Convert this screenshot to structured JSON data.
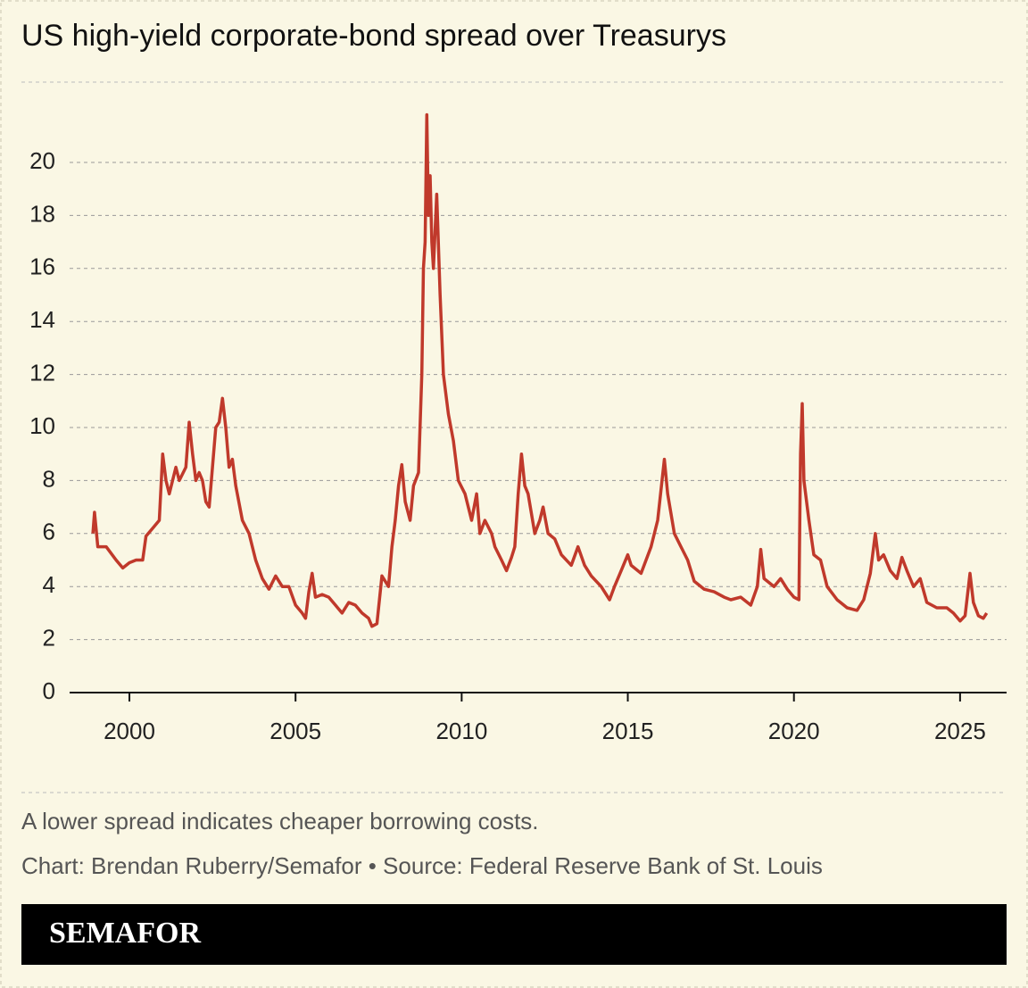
{
  "chart_data": {
    "type": "line",
    "title": "US high-yield corporate-bond spread over Treasurys",
    "note": "A lower spread indicates cheaper borrowing costs.",
    "source": "Chart: Brendan Ruberry/Semafor • Source: Federal Reserve Bank of St. Louis",
    "brand": "SEMAFOR",
    "xlim": [
      1998.2,
      2026.4
    ],
    "xticks": [
      2000,
      2005,
      2010,
      2015,
      2020,
      2025
    ],
    "ylim": [
      0,
      22
    ],
    "yticks": [
      0,
      2,
      4,
      6,
      8,
      10,
      12,
      14,
      16,
      18,
      20
    ],
    "grid": true,
    "x": [
      1998.9,
      1998.95,
      1999.05,
      1999.3,
      1999.6,
      1999.8,
      2000.0,
      2000.2,
      2000.4,
      2000.5,
      2000.7,
      2000.9,
      2001.0,
      2001.1,
      2001.2,
      2001.4,
      2001.5,
      2001.7,
      2001.8,
      2001.9,
      2002.0,
      2002.1,
      2002.2,
      2002.3,
      2002.4,
      2002.5,
      2002.6,
      2002.7,
      2002.8,
      2002.9,
      2003.0,
      2003.1,
      2003.2,
      2003.4,
      2003.6,
      2003.8,
      2004.0,
      2004.2,
      2004.4,
      2004.6,
      2004.8,
      2005.0,
      2005.2,
      2005.3,
      2005.4,
      2005.5,
      2005.6,
      2005.8,
      2006.0,
      2006.2,
      2006.4,
      2006.6,
      2006.8,
      2007.0,
      2007.2,
      2007.3,
      2007.45,
      2007.6,
      2007.8,
      2007.9,
      2008.0,
      2008.1,
      2008.2,
      2008.3,
      2008.45,
      2008.55,
      2008.7,
      2008.8,
      2008.85,
      2008.9,
      2008.95,
      2009.0,
      2009.05,
      2009.1,
      2009.15,
      2009.25,
      2009.35,
      2009.45,
      2009.6,
      2009.75,
      2009.9,
      2010.1,
      2010.3,
      2010.45,
      2010.55,
      2010.7,
      2010.9,
      2011.0,
      2011.2,
      2011.35,
      2011.5,
      2011.6,
      2011.7,
      2011.8,
      2011.9,
      2012.0,
      2012.2,
      2012.35,
      2012.45,
      2012.6,
      2012.8,
      2013.0,
      2013.3,
      2013.5,
      2013.7,
      2013.9,
      2014.2,
      2014.45,
      2014.6,
      2014.8,
      2015.0,
      2015.1,
      2015.4,
      2015.7,
      2015.9,
      2016.1,
      2016.2,
      2016.4,
      2016.6,
      2016.8,
      2017.0,
      2017.3,
      2017.6,
      2017.9,
      2018.1,
      2018.4,
      2018.7,
      2018.9,
      2019.0,
      2019.1,
      2019.4,
      2019.6,
      2019.8,
      2020.0,
      2020.15,
      2020.2,
      2020.25,
      2020.3,
      2020.45,
      2020.6,
      2020.8,
      2021.0,
      2021.3,
      2021.6,
      2021.9,
      2022.1,
      2022.3,
      2022.45,
      2022.55,
      2022.7,
      2022.9,
      2023.1,
      2023.25,
      2023.4,
      2023.6,
      2023.8,
      2024.0,
      2024.3,
      2024.6,
      2024.8,
      2025.0,
      2025.15,
      2025.3,
      2025.4,
      2025.55,
      2025.7,
      2025.8
    ],
    "series": [
      {
        "color": "#c0392b",
        "values": [
          6.0,
          6.8,
          5.5,
          5.5,
          5.0,
          4.7,
          4.9,
          5.0,
          5.0,
          5.9,
          6.2,
          6.5,
          9.0,
          8.0,
          7.5,
          8.5,
          8.0,
          8.5,
          10.2,
          9.0,
          8.0,
          8.3,
          8.0,
          7.2,
          7.0,
          8.5,
          10.0,
          10.2,
          11.1,
          10.0,
          8.5,
          8.8,
          7.8,
          6.5,
          6.0,
          5.0,
          4.3,
          3.9,
          4.4,
          4.0,
          4.0,
          3.3,
          3.0,
          2.8,
          3.8,
          4.5,
          3.6,
          3.7,
          3.6,
          3.3,
          3.0,
          3.4,
          3.3,
          3.0,
          2.8,
          2.5,
          2.6,
          4.4,
          4.0,
          5.5,
          6.5,
          7.8,
          8.6,
          7.2,
          6.5,
          7.8,
          8.3,
          12.0,
          16.0,
          17.0,
          21.8,
          18.0,
          19.5,
          17.0,
          16.0,
          18.8,
          15.0,
          12.0,
          10.5,
          9.5,
          8.0,
          7.5,
          6.5,
          7.5,
          6.0,
          6.5,
          6.0,
          5.5,
          5.0,
          4.6,
          5.1,
          5.5,
          7.5,
          9.0,
          7.8,
          7.5,
          6.0,
          6.5,
          7.0,
          6.0,
          5.8,
          5.2,
          4.8,
          5.5,
          4.8,
          4.4,
          4.0,
          3.5,
          4.0,
          4.6,
          5.2,
          4.8,
          4.5,
          5.5,
          6.5,
          8.8,
          7.5,
          6.0,
          5.5,
          5.0,
          4.2,
          3.9,
          3.8,
          3.6,
          3.5,
          3.6,
          3.3,
          4.0,
          5.4,
          4.3,
          4.0,
          4.3,
          3.9,
          3.6,
          3.5,
          9.0,
          10.9,
          8.0,
          6.5,
          5.2,
          5.0,
          4.0,
          3.5,
          3.2,
          3.1,
          3.5,
          4.5,
          6.0,
          5.0,
          5.2,
          4.6,
          4.3,
          5.1,
          4.6,
          4.0,
          4.3,
          3.4,
          3.2,
          3.2,
          3.0,
          2.7,
          2.9,
          4.5,
          3.4,
          2.9,
          2.8,
          3.0
        ]
      }
    ]
  }
}
